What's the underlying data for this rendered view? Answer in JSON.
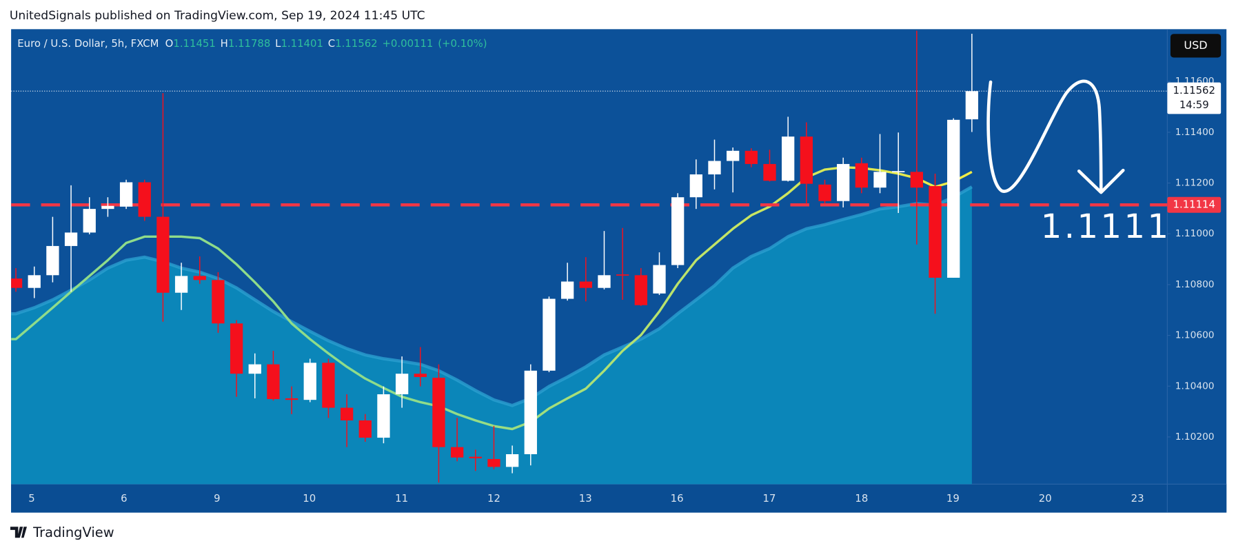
{
  "header": {
    "publisher_line": "UnitedSignals published on TradingView.com, Sep 19, 2024 11:45 UTC"
  },
  "footer": {
    "brand": "TradingView"
  },
  "chart_data": {
    "type": "candlestick",
    "title": "Euro / U.S. Dollar, 5h, FXCM",
    "ohlc_prefixes": [
      "O",
      "H",
      "L",
      "C"
    ],
    "change": {
      "value": 0.00111,
      "label": "+0.00111"
    },
    "change_percent": {
      "value": 0.1,
      "label": "(+0.10%)"
    },
    "currency": "USD",
    "up_color": "#ffffff",
    "down_color": "#f5101c",
    "legend_value_color": "#2fbf9c",
    "open": [
      1.10824,
      1.10787,
      1.10837,
      1.10952,
      1.11005,
      1.11098,
      1.11107,
      1.11203,
      1.11067,
      1.10768,
      1.10834,
      1.10818,
      1.10647,
      1.10449,
      1.10486,
      1.10352,
      1.10346,
      1.10492,
      1.10315,
      1.10265,
      1.10197,
      1.10368,
      1.10449,
      1.10433,
      1.1016,
      1.10122,
      1.10113,
      1.10082,
      1.10132,
      1.10461,
      1.10744,
      1.10812,
      1.10787,
      1.1084,
      1.10837,
      1.10765,
      1.10877,
      1.11144,
      1.11234,
      1.11287,
      1.11327,
      1.11275,
      1.11209,
      1.11383,
      1.11194,
      1.11129,
      1.11278,
      1.11182,
      1.11244,
      1.11244,
      1.11188,
      1.10827,
      1.11451
    ],
    "high": [
      1.10865,
      1.10871,
      1.11067,
      1.11191,
      1.11144,
      1.11144,
      1.11213,
      1.11213,
      1.11554,
      1.10886,
      1.10911,
      1.10849,
      1.1066,
      1.10529,
      1.10539,
      1.10399,
      1.10508,
      1.10508,
      1.10368,
      1.1029,
      1.10399,
      1.10517,
      1.10554,
      1.10486,
      1.10275,
      1.1015,
      1.10243,
      1.10166,
      1.10486,
      1.10753,
      1.10886,
      1.10908,
      1.11011,
      1.11023,
      1.10865,
      1.10927,
      1.1116,
      1.11293,
      1.11371,
      1.1134,
      1.11337,
      1.11331,
      1.11461,
      1.11439,
      1.11213,
      1.113,
      1.113,
      1.11393,
      1.11399,
      1.118,
      1.11237,
      1.11455,
      1.11788
    ],
    "low": [
      1.10772,
      1.10747,
      1.10809,
      1.10772,
      1.10998,
      1.11067,
      1.11098,
      1.11051,
      1.10654,
      1.107,
      1.10803,
      1.1061,
      1.10358,
      1.10352,
      1.10343,
      1.1029,
      1.10337,
      1.10275,
      1.1016,
      1.10181,
      1.10175,
      1.10315,
      1.10399,
      1.1002,
      1.10104,
      1.10066,
      1.10073,
      1.10057,
      1.10088,
      1.10455,
      1.10737,
      1.10734,
      1.10781,
      1.1074,
      1.10716,
      1.10759,
      1.10865,
      1.11098,
      1.11175,
      1.11163,
      1.11262,
      1.11206,
      1.11206,
      1.11119,
      1.11119,
      1.11104,
      1.1116,
      1.1116,
      1.11082,
      1.10958,
      1.10685,
      1.10827,
      1.11401
    ],
    "close": [
      1.10787,
      1.10837,
      1.10952,
      1.11005,
      1.11098,
      1.1111,
      1.11203,
      1.11067,
      1.10768,
      1.10834,
      1.10818,
      1.10647,
      1.10449,
      1.10486,
      1.10349,
      1.10346,
      1.10492,
      1.10315,
      1.10265,
      1.10197,
      1.10368,
      1.10449,
      1.10436,
      1.1016,
      1.10119,
      1.10116,
      1.10082,
      1.10132,
      1.10461,
      1.10744,
      1.10812,
      1.10787,
      1.10837,
      1.10837,
      1.10719,
      1.10877,
      1.11144,
      1.11234,
      1.11287,
      1.11327,
      1.11275,
      1.11209,
      1.11383,
      1.11197,
      1.11129,
      1.11275,
      1.11182,
      1.11244,
      1.11247,
      1.11182,
      1.10827,
      1.11449,
      1.11562
    ],
    "area": {
      "color": "#0b86b9",
      "line_color": "#2a9fd0",
      "values": [
        1.10685,
        1.10709,
        1.1074,
        1.10778,
        1.10818,
        1.10865,
        1.10896,
        1.10908,
        1.1089,
        1.10865,
        1.10849,
        1.10824,
        1.10787,
        1.1074,
        1.10694,
        1.10654,
        1.10616,
        1.10579,
        1.10548,
        1.10523,
        1.10508,
        1.10498,
        1.10486,
        1.10461,
        1.10424,
        1.10383,
        1.10346,
        1.10324,
        1.10352,
        1.10399,
        1.10436,
        1.10476,
        1.10523,
        1.10554,
        1.10585,
        1.10626,
        1.10685,
        1.1074,
        1.10796,
        1.10865,
        1.10911,
        1.10942,
        1.10989,
        1.1102,
        1.11036,
        1.11057,
        1.11076,
        1.11098,
        1.11107,
        1.11119,
        1.11113,
        1.11144,
        1.11185
      ]
    },
    "line": {
      "color": "#f2ec45",
      "start_color": "#8fdc8a",
      "values": [
        1.10585,
        1.10647,
        1.10709,
        1.10772,
        1.10834,
        1.10896,
        1.10964,
        1.10989,
        1.10989,
        1.10989,
        1.10983,
        1.10942,
        1.1088,
        1.10809,
        1.10734,
        1.10647,
        1.10585,
        1.10529,
        1.10476,
        1.1043,
        1.10393,
        1.10358,
        1.10337,
        1.10321,
        1.1029,
        1.10265,
        1.10243,
        1.10231,
        1.10259,
        1.10312,
        1.10352,
        1.1039,
        1.10461,
        1.10539,
        1.10601,
        1.10694,
        1.10803,
        1.10896,
        1.10958,
        1.1102,
        1.11073,
        1.11107,
        1.1116,
        1.11222,
        1.11253,
        1.11262,
        1.11259,
        1.1125,
        1.11237,
        1.11219,
        1.11185,
        1.11206,
        1.11244
      ]
    },
    "level": {
      "value": 1.11114,
      "color": "#f23645"
    },
    "current_price": {
      "value": 1.11562,
      "countdown": "14:59"
    },
    "annotation": "1.1111",
    "xlim": [
      -0.26,
      62.63
    ],
    "xticks": [
      {
        "value": 0.86,
        "label": "5"
      },
      {
        "value": 5.88,
        "label": "6"
      },
      {
        "value": 10.94,
        "label": "9"
      },
      {
        "value": 15.96,
        "label": "10"
      },
      {
        "value": 20.98,
        "label": "11"
      },
      {
        "value": 26.0,
        "label": "12"
      },
      {
        "value": 30.98,
        "label": "13"
      },
      {
        "value": 35.96,
        "label": "16"
      },
      {
        "value": 40.98,
        "label": "17"
      },
      {
        "value": 46.0,
        "label": "18"
      },
      {
        "value": 50.97,
        "label": "19"
      },
      {
        "value": 55.99,
        "label": "20"
      },
      {
        "value": 61.01,
        "label": "23"
      }
    ],
    "ylim": [
      1.10014,
      1.11806
    ],
    "yticks": [
      {
        "value": 1.102,
        "label": "1.10200"
      },
      {
        "value": 1.104,
        "label": "1.10400"
      },
      {
        "value": 1.106,
        "label": "1.10600"
      },
      {
        "value": 1.108,
        "label": "1.10800"
      },
      {
        "value": 1.11,
        "label": "1.11000"
      },
      {
        "value": 1.112,
        "label": "1.11200"
      },
      {
        "value": 1.114,
        "label": "1.11400"
      },
      {
        "value": 1.116,
        "label": "1.11600"
      }
    ],
    "grid": false
  }
}
